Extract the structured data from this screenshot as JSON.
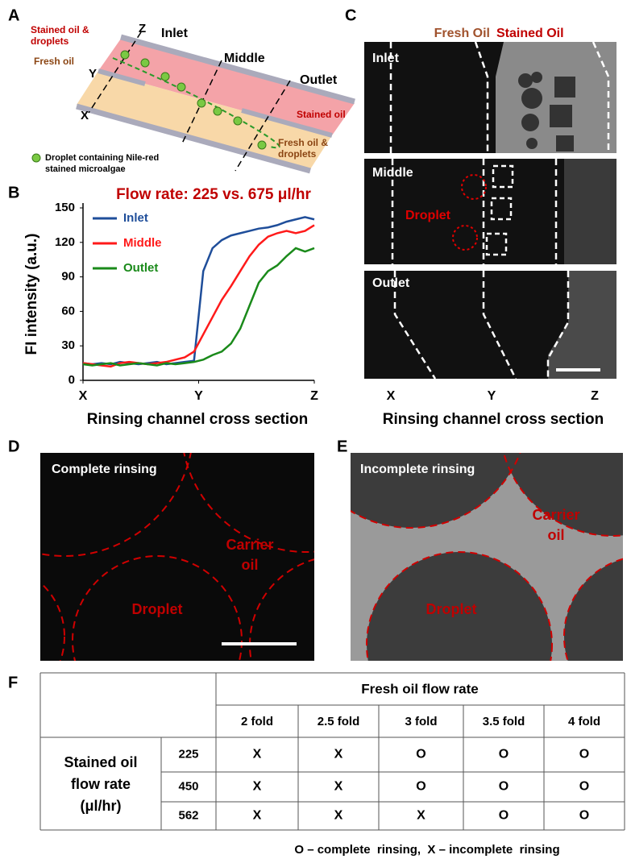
{
  "panel_letters": [
    "A",
    "B",
    "C",
    "D",
    "E",
    "F"
  ],
  "panel_a": {
    "stained_oil_droplets": [
      "Stained oil &",
      "droplets"
    ],
    "fresh_oil": "Fresh oil",
    "z": "Z",
    "y": "Y",
    "x": "X",
    "inlet": "Inlet",
    "middle": "Middle",
    "outlet": "Outlet",
    "stained_oil": "Stained oil",
    "fresh_oil_droplets": [
      "Fresh oil &",
      "droplets"
    ],
    "droplet_legend": [
      "Droplet containing Nile-red",
      "stained microalgae"
    ]
  },
  "chart_data": {
    "type": "line",
    "title": "Flow rate: 225 vs. 675 μl/hr",
    "x_label": "Rinsing channel cross section",
    "y_label": "FI intensity (a.u.)",
    "x": [
      0,
      4,
      8,
      12,
      16,
      20,
      24,
      28,
      32,
      36,
      40,
      44,
      48,
      52,
      56,
      60,
      64,
      68,
      72,
      76,
      80,
      84,
      88,
      92,
      96,
      100
    ],
    "xlim": [
      0,
      100
    ],
    "xticks": [
      {
        "value": 0,
        "label": "X"
      },
      {
        "value": 50,
        "label": "Y"
      },
      {
        "value": 100,
        "label": "Z"
      }
    ],
    "ylim": [
      0,
      150
    ],
    "yticks": [
      0,
      30,
      60,
      90,
      120,
      150
    ],
    "legend": "upper-left",
    "series": [
      {
        "name": "Inlet",
        "color": "#1f4e9a",
        "values": [
          15,
          14,
          15,
          14,
          16,
          15,
          14,
          15,
          16,
          14,
          15,
          16,
          17,
          95,
          115,
          122,
          126,
          128,
          130,
          132,
          133,
          135,
          138,
          140,
          142,
          140
        ]
      },
      {
        "name": "Middle",
        "color": "#ff1a1a",
        "values": [
          15,
          14,
          13,
          12,
          15,
          16,
          15,
          14,
          15,
          16,
          18,
          20,
          25,
          40,
          55,
          70,
          82,
          95,
          108,
          118,
          125,
          128,
          130,
          128,
          130,
          135
        ]
      },
      {
        "name": "Outlet",
        "color": "#1a8a1a",
        "values": [
          14,
          13,
          14,
          15,
          13,
          14,
          15,
          14,
          13,
          15,
          14,
          15,
          16,
          18,
          22,
          25,
          32,
          45,
          65,
          85,
          95,
          100,
          108,
          115,
          112,
          115
        ]
      }
    ]
  },
  "panel_c": {
    "fresh_oil": "Fresh Oil",
    "stained_oil": "Stained Oil",
    "inlet": "Inlet",
    "middle": "Middle",
    "outlet": "Outlet",
    "droplet": "Droplet",
    "x_labels": [
      "X",
      "Y",
      "Z"
    ],
    "x_label": "Rinsing channel cross section"
  },
  "panel_d": {
    "title": "Complete rinsing",
    "carrier_oil": [
      "Carrier",
      "oil"
    ],
    "droplet": "Droplet"
  },
  "panel_e": {
    "title": "Incomplete rinsing",
    "carrier_oil": [
      "Carrier",
      "oil"
    ],
    "droplet": "Droplet"
  },
  "panel_f": {
    "group_header": "Fresh oil flow rate",
    "columns": [
      "2 fold",
      "2.5 fold",
      "3 fold",
      "3.5 fold",
      "4 fold"
    ],
    "row_header": [
      "Stained oil",
      "flow rate",
      "(μl/hr)"
    ],
    "rows": [
      {
        "label": 225,
        "cells": [
          "X",
          "X",
          "O",
          "O",
          "O"
        ]
      },
      {
        "label": 450,
        "cells": [
          "X",
          "X",
          "O",
          "O",
          "O"
        ]
      },
      {
        "label": 562,
        "cells": [
          "X",
          "X",
          "X",
          "O",
          "O"
        ]
      }
    ],
    "footnote": "O – complete  rinsing,  X – incomplete  rinsing"
  }
}
